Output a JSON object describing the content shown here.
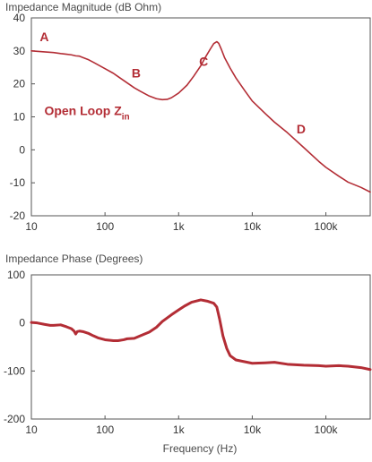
{
  "chart_data": [
    {
      "type": "line",
      "title": "Impedance Magnitude (dB Ohm)",
      "xlabel": "",
      "ylabel": "",
      "x_scale": "log",
      "xlim": [
        10,
        400000
      ],
      "ylim": [
        -20,
        40
      ],
      "x_ticks": [
        {
          "value": 10,
          "label": "10"
        },
        {
          "value": 100,
          "label": "100"
        },
        {
          "value": 1000,
          "label": "1k"
        },
        {
          "value": 10000,
          "label": "10k"
        },
        {
          "value": 100000,
          "label": "100k"
        }
      ],
      "y_ticks": [
        {
          "value": 40,
          "label": "40"
        },
        {
          "value": 30,
          "label": "30"
        },
        {
          "value": 20,
          "label": "20"
        },
        {
          "value": 10,
          "label": "10"
        },
        {
          "value": 0,
          "label": "0"
        },
        {
          "value": -10,
          "label": "-10"
        },
        {
          "value": -20,
          "label": "-20"
        }
      ],
      "grid": false,
      "series": [
        {
          "color": "#b32d35",
          "x": [
            10,
            15,
            20,
            25,
            30,
            35,
            40,
            45,
            50,
            60,
            70,
            80,
            100,
            130,
            160,
            200,
            250,
            300,
            400,
            500,
            600,
            700,
            800,
            1000,
            1300,
            1600,
            2000,
            2300,
            2700,
            3000,
            3300,
            3500,
            3800,
            4200,
            5000,
            6000,
            8000,
            10000,
            15000,
            20000,
            30000,
            50000,
            80000,
            100000,
            150000,
            200000,
            300000,
            400000
          ],
          "y": [
            30,
            29.7,
            29.5,
            29.2,
            29,
            28.8,
            28.5,
            28.4,
            28,
            27.3,
            26.5,
            25.8,
            24.6,
            23.2,
            21.8,
            20.3,
            18.8,
            17.8,
            16.3,
            15.5,
            15.2,
            15.3,
            15.8,
            17.2,
            19.6,
            22.3,
            25.5,
            28,
            30.6,
            32.2,
            32.8,
            32.3,
            30.5,
            28,
            24.8,
            21.8,
            17.8,
            14.8,
            11,
            8.4,
            5.2,
            0.7,
            -3.5,
            -5.3,
            -8,
            -9.8,
            -11.4,
            -12.8
          ]
        }
      ],
      "annotations": [
        {
          "text": "A",
          "x": 13,
          "y": 33
        },
        {
          "text": "B",
          "x": 230,
          "y": 22
        },
        {
          "text": "C",
          "x": 1900,
          "y": 25.5
        },
        {
          "text": "D",
          "x": 40000,
          "y": 5
        },
        {
          "text_main": "Open Loop Z",
          "text_sub": "in",
          "x": 15,
          "y": 10.5
        }
      ]
    },
    {
      "type": "line",
      "title": "Impedance Phase (Degrees)",
      "xlabel": "Frequency (Hz)",
      "ylabel": "",
      "x_scale": "log",
      "xlim": [
        10,
        400000
      ],
      "ylim": [
        -200,
        100
      ],
      "x_ticks": [
        {
          "value": 10,
          "label": "10"
        },
        {
          "value": 100,
          "label": "100"
        },
        {
          "value": 1000,
          "label": "1k"
        },
        {
          "value": 10000,
          "label": "10k"
        },
        {
          "value": 100000,
          "label": "100k"
        }
      ],
      "y_ticks": [
        {
          "value": 100,
          "label": "100"
        },
        {
          "value": 0,
          "label": "0"
        },
        {
          "value": -100,
          "label": "-100"
        },
        {
          "value": -200,
          "label": "-200"
        }
      ],
      "grid": false,
      "series": [
        {
          "color": "#b32d35",
          "x": [
            10,
            12,
            15,
            18,
            20,
            25,
            30,
            35,
            38,
            40,
            42,
            45,
            50,
            60,
            70,
            80,
            100,
            130,
            150,
            180,
            200,
            250,
            300,
            400,
            500,
            600,
            800,
            1000,
            1200,
            1500,
            2000,
            2500,
            3000,
            3300,
            3600,
            4000,
            4500,
            5000,
            6000,
            8000,
            10000,
            15000,
            20000,
            30000,
            50000,
            80000,
            100000,
            150000,
            200000,
            300000,
            400000
          ],
          "y": [
            1,
            0,
            -3,
            -5,
            -5,
            -4,
            -8,
            -12,
            -17,
            -23,
            -18,
            -17,
            -18,
            -22,
            -27,
            -31,
            -35,
            -37,
            -37,
            -35,
            -33,
            -32,
            -27,
            -19,
            -9,
            3,
            17,
            27,
            35,
            43,
            48,
            45,
            41,
            33,
            8,
            -27,
            -53,
            -68,
            -77,
            -81,
            -84,
            -83,
            -82,
            -86,
            -88,
            -89,
            -90,
            -89,
            -90,
            -93,
            -97
          ]
        }
      ]
    }
  ]
}
